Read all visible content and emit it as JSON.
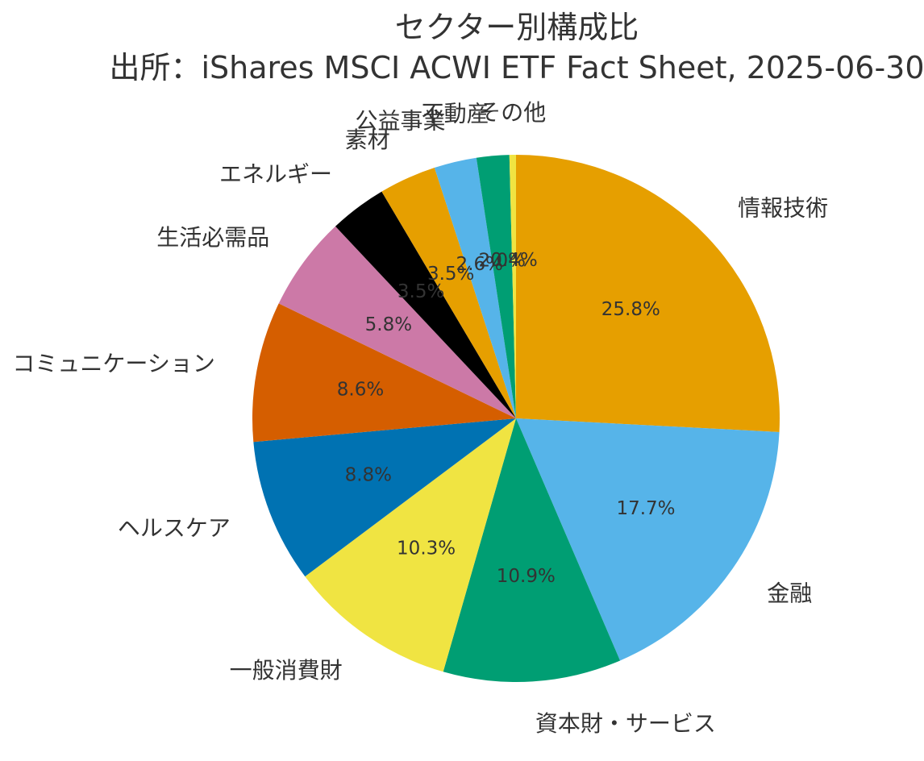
{
  "chart_data": {
    "type": "pie",
    "title": "セクター別構成比",
    "subtitle": "出所：iShares MSCI ACWI ETF Fact Sheet, 2025-06-30",
    "start_angle_deg": 90,
    "direction": "clockwise",
    "slices": [
      {
        "label": "情報技術",
        "value": 25.8,
        "pct_label": "25.8%",
        "color": "#E69F00"
      },
      {
        "label": "金融",
        "value": 17.7,
        "pct_label": "17.7%",
        "color": "#56B4E9"
      },
      {
        "label": "資本財・サービス",
        "value": 10.9,
        "pct_label": "10.9%",
        "color": "#009E73"
      },
      {
        "label": "一般消費財",
        "value": 10.3,
        "pct_label": "10.3%",
        "color": "#F0E442"
      },
      {
        "label": "ヘルスケア",
        "value": 8.8,
        "pct_label": "8.8%",
        "color": "#0072B2"
      },
      {
        "label": "コミュニケーション",
        "value": 8.6,
        "pct_label": "8.6%",
        "color": "#D55E00"
      },
      {
        "label": "生活必需品",
        "value": 5.8,
        "pct_label": "5.8%",
        "color": "#CC79A7"
      },
      {
        "label": "エネルギー",
        "value": 3.5,
        "pct_label": "3.5%",
        "color": "#000000"
      },
      {
        "label": "素材",
        "value": 3.5,
        "pct_label": "3.5%",
        "color": "#E69F00"
      },
      {
        "label": "公益事業",
        "value": 2.6,
        "pct_label": "2.6%",
        "color": "#56B4E9"
      },
      {
        "label": "不動産",
        "value": 2.0,
        "pct_label": "2.0%",
        "color": "#009E73"
      },
      {
        "label": "その他",
        "value": 0.4,
        "pct_label": "0.4%",
        "color": "#F0E442"
      }
    ]
  }
}
